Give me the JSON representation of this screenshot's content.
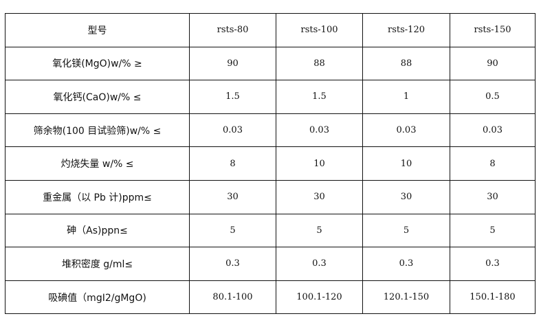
{
  "table": {
    "headers": [
      "型号",
      "rsts-80",
      "rsts-100",
      "rsts-120",
      "rsts-150"
    ],
    "rows": [
      {
        "label": "氧化镁(MgO)w/% ≥",
        "values": [
          "90",
          "88",
          "88",
          "90"
        ]
      },
      {
        "label": "氧化钙(CaO)w/% ≤",
        "values": [
          "1.5",
          "1.5",
          "1",
          "0.5"
        ]
      },
      {
        "label": "筛余物(100 目试验筛)w/% ≤",
        "values": [
          "0.03",
          "0.03",
          "0.03",
          "0.03"
        ]
      },
      {
        "label": "灼烧失量 w/% ≤",
        "values": [
          "8",
          "10",
          "10",
          "8"
        ]
      },
      {
        "label": "重金属（以 Pb 计)ppm≤",
        "values": [
          "30",
          "30",
          "30",
          "30"
        ]
      },
      {
        "label": "砷（As)ppn≤",
        "values": [
          "5",
          "5",
          "5",
          "5"
        ]
      },
      {
        "label": "堆积密度 g/ml≤",
        "values": [
          "0.3",
          "0.3",
          "0.3",
          "0.3"
        ]
      },
      {
        "label": "吸碘值（mgI2/gMgO)",
        "values": [
          "80.1-100",
          "100.1-120",
          "120.1-150",
          "150.1-180"
        ]
      }
    ]
  }
}
